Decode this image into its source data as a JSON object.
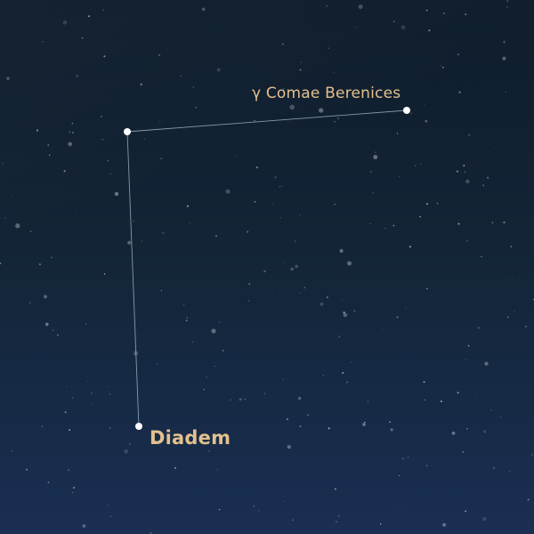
{
  "view": {
    "background_colors": [
      "#0f1d2c",
      "#1a2f52"
    ],
    "label_color": "#e3c08d",
    "line_color": "#a9c2d3"
  },
  "constellation": {
    "stars": [
      {
        "id": "gamma",
        "label": "γ Comae Berenices"
      },
      {
        "id": "corner",
        "label": ""
      },
      {
        "id": "diadem",
        "label": "Diadem"
      }
    ]
  }
}
